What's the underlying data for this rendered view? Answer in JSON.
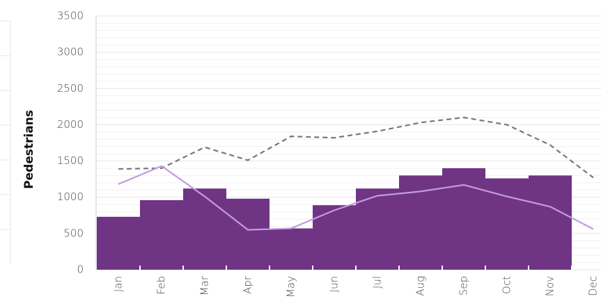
{
  "chart_data": {
    "type": "combo",
    "y_label": "Pedestrians",
    "categories": [
      "Jan",
      "Feb",
      "Mar",
      "Apr",
      "May",
      "Jun",
      "Jul",
      "Aug",
      "Sep",
      "Oct",
      "Nov",
      "Dec"
    ],
    "series": [
      {
        "type": "bar",
        "color": "#6f3584",
        "values": [
          730,
          960,
          1120,
          980,
          570,
          890,
          1120,
          1300,
          1400,
          1260,
          1300,
          null
        ]
      },
      {
        "type": "line",
        "color": "#777777",
        "linestyle": "dashed",
        "values": [
          1390,
          1400,
          1690,
          1510,
          1840,
          1820,
          1910,
          2030,
          2100,
          2000,
          1720,
          1270
        ]
      },
      {
        "type": "line",
        "color": "#c39be0",
        "linestyle": "solid",
        "values": [
          1180,
          1430,
          1010,
          550,
          570,
          820,
          1020,
          1080,
          1170,
          1010,
          870,
          560
        ]
      }
    ],
    "ylim": [
      0,
      3500
    ],
    "yticks": [
      0,
      500,
      1000,
      1500,
      2000,
      2500,
      3000,
      3500
    ],
    "grid": true
  }
}
